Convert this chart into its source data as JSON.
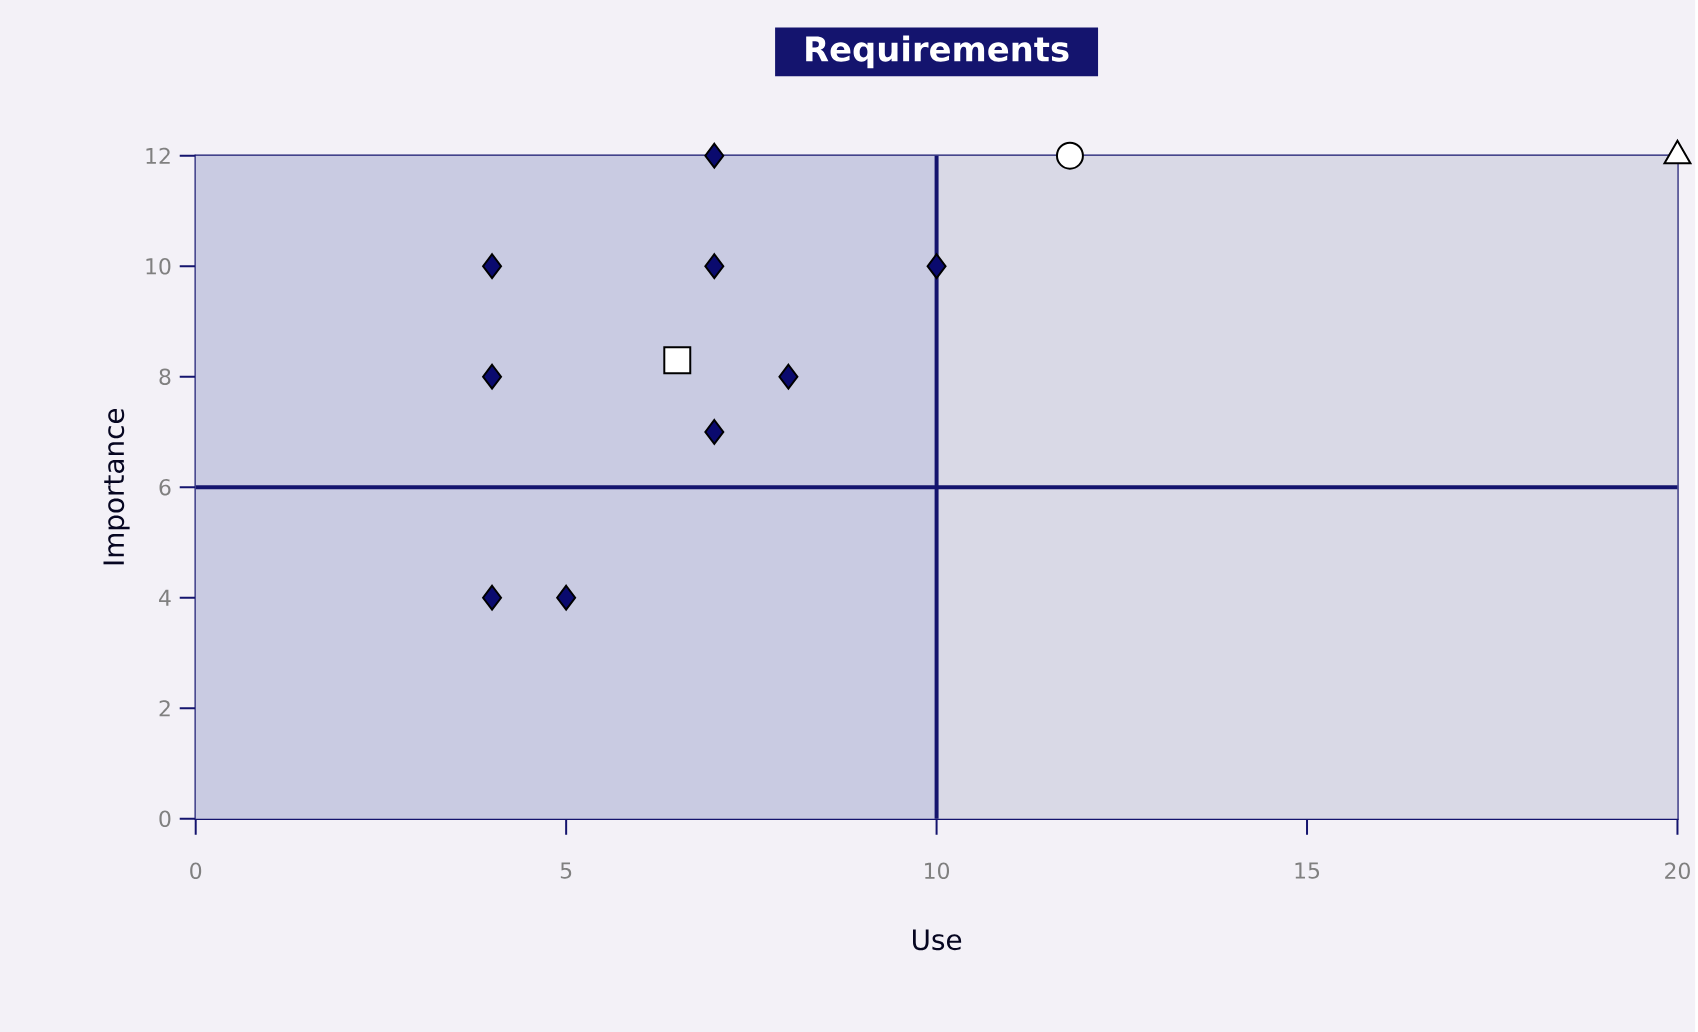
{
  "chart_data": {
    "type": "scatter",
    "title": "Requirements",
    "xlabel": "Use",
    "ylabel": "Importance",
    "xlim": [
      0,
      20
    ],
    "ylim": [
      0,
      12
    ],
    "xticks": [
      0,
      5,
      10,
      15,
      20
    ],
    "yticks": [
      0,
      2,
      4,
      6,
      8,
      10,
      12
    ],
    "bands": [
      {
        "axis": "x",
        "from": 0,
        "to": 10,
        "color": "#c9cbe2"
      },
      {
        "axis": "x",
        "from": 10,
        "to": 20,
        "color": "#d9d9e6"
      }
    ],
    "ref_lines": [
      {
        "axis": "x",
        "value": 10,
        "color": "#14146e"
      },
      {
        "axis": "y",
        "value": 6,
        "color": "#14146e"
      }
    ],
    "series": [
      {
        "color": "#0a0a6e",
        "marker": "diamond",
        "x": [
          4,
          4,
          4,
          5,
          7,
          7,
          7,
          8,
          10
        ],
        "values": [
          10,
          8,
          4,
          4,
          12,
          10,
          7,
          8,
          10
        ]
      },
      {
        "color": "#ffffff",
        "marker": "square",
        "x": [
          6.5
        ],
        "values": [
          8.3
        ]
      },
      {
        "color": "#ffffff",
        "marker": "circle",
        "x": [
          11.8
        ],
        "values": [
          12
        ]
      },
      {
        "color": "#ffffff",
        "marker": "triangle",
        "x": [
          20
        ],
        "values": [
          12
        ]
      }
    ]
  }
}
